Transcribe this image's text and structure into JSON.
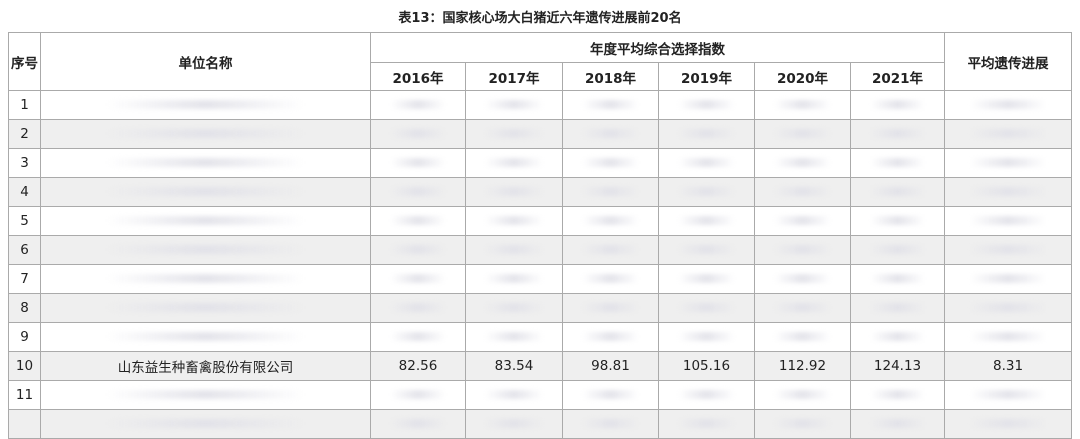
{
  "title": "表13：国家核心场大白猪近六年遗传进展前20名",
  "headers": {
    "seq": "序号",
    "name": "单位名称",
    "index_group": "年度平均综合选择指数",
    "years": [
      "2016年",
      "2017年",
      "2018年",
      "2019年",
      "2020年",
      "2021年"
    ],
    "avg_progress": "平均遗传进展"
  },
  "rows": [
    {
      "seq": "1",
      "name": "",
      "values": [
        "",
        "",
        "",
        "",
        "",
        ""
      ],
      "avg": ""
    },
    {
      "seq": "2",
      "name": "",
      "values": [
        "",
        "",
        "",
        "",
        "",
        ""
      ],
      "avg": ""
    },
    {
      "seq": "3",
      "name": "",
      "values": [
        "",
        "",
        "",
        "",
        "",
        ""
      ],
      "avg": ""
    },
    {
      "seq": "4",
      "name": "",
      "values": [
        "",
        "",
        "",
        "",
        "",
        ""
      ],
      "avg": ""
    },
    {
      "seq": "5",
      "name": "",
      "values": [
        "",
        "",
        "",
        "",
        "",
        ""
      ],
      "avg": ""
    },
    {
      "seq": "6",
      "name": "",
      "values": [
        "",
        "",
        "",
        "",
        "",
        ""
      ],
      "avg": ""
    },
    {
      "seq": "7",
      "name": "",
      "values": [
        "",
        "",
        "",
        "",
        "",
        ""
      ],
      "avg": ""
    },
    {
      "seq": "8",
      "name": "",
      "values": [
        "",
        "",
        "",
        "",
        "",
        ""
      ],
      "avg": ""
    },
    {
      "seq": "9",
      "name": "",
      "values": [
        "",
        "",
        "",
        "",
        "",
        ""
      ],
      "avg": ""
    },
    {
      "seq": "10",
      "name": "山东益生种畜禽股份有限公司",
      "values": [
        "82.56",
        "83.54",
        "98.81",
        "105.16",
        "112.92",
        "124.13"
      ],
      "avg": "8.31"
    },
    {
      "seq": "11",
      "name": "",
      "values": [
        "",
        "",
        "",
        "",
        "",
        ""
      ],
      "avg": ""
    },
    {
      "seq": "",
      "name": "",
      "values": [
        "",
        "",
        "",
        "",
        "",
        ""
      ],
      "avg": ""
    }
  ]
}
